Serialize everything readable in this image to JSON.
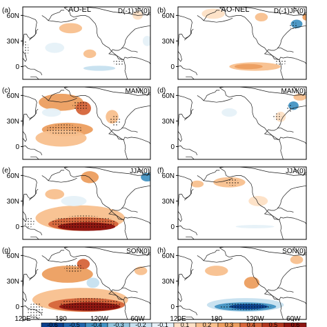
{
  "colors": {
    "-0.6": "#0a3f8c",
    "-0.5": "#2166ac",
    "-0.4": "#4393c3",
    "-0.3": "#92c5de",
    "-0.2": "#c6e0ef",
    "-0.1": "#e6f1f8",
    "0.1": "#fde0c5",
    "0.2": "#f8c08e",
    "0.3": "#ec9e5f",
    "0.4": "#d6653a",
    "0.5": "#b2361f",
    "0.6": "#8c1410",
    "land": "#ffffff",
    "coast": "#1a1a1a",
    "frame": "#000000"
  },
  "chart_data": [
    {
      "type": "heatmap",
      "panel": "(a)",
      "column_title": "AO-EL",
      "season": "D(-1)JF(0)",
      "y_tick_labels": [
        "60N",
        "30N",
        "0"
      ],
      "x_tick_labels": [],
      "features": [
        {
          "sign": "pos",
          "level": 0.2,
          "lon": 195,
          "lat": 45,
          "rx": 18,
          "ry": 6
        },
        {
          "sign": "pos",
          "level": 0.2,
          "lon": 225,
          "lat": 15,
          "rx": 10,
          "ry": 5
        },
        {
          "sign": "neg",
          "level": -0.2,
          "lon": 240,
          "lat": -2,
          "rx": 25,
          "ry": 3
        },
        {
          "sign": "neg",
          "level": -0.1,
          "lon": 170,
          "lat": 22,
          "rx": 15,
          "ry": 6
        },
        {
          "sign": "pos",
          "level": 0.1,
          "lon": 300,
          "lat": 60,
          "rx": 8,
          "ry": 5
        },
        {
          "sign": "neg",
          "level": -0.1,
          "lon": 315,
          "lat": 30,
          "rx": 7,
          "ry": 6
        }
      ],
      "stipple": [
        {
          "lon": 270,
          "lat": 5,
          "rx": 8,
          "ry": 4
        },
        {
          "lon": 125,
          "lat": 20,
          "rx": 4,
          "ry": 10
        }
      ]
    },
    {
      "type": "heatmap",
      "panel": "(b)",
      "column_title": "AO-NEL",
      "season": "D(-1)JF(0)",
      "y_tick_labels": [
        "60N",
        "30N",
        "0"
      ],
      "x_tick_labels": [],
      "features": [
        {
          "sign": "pos",
          "level": 0.2,
          "lon": 240,
          "lat": 0,
          "rx": 40,
          "ry": 5
        },
        {
          "sign": "pos",
          "level": 0.3,
          "lon": 230,
          "lat": 0,
          "rx": 22,
          "ry": 3
        },
        {
          "sign": "pos",
          "level": 0.1,
          "lon": 175,
          "lat": 62,
          "rx": 18,
          "ry": 6
        },
        {
          "sign": "pos",
          "level": 0.2,
          "lon": 250,
          "lat": 58,
          "rx": 10,
          "ry": 5
        },
        {
          "sign": "neg",
          "level": -0.4,
          "lon": 305,
          "lat": 50,
          "rx": 9,
          "ry": 5
        },
        {
          "sign": "pos",
          "level": 0.3,
          "lon": 320,
          "lat": 58,
          "rx": 6,
          "ry": 4
        }
      ],
      "stipple": [
        {
          "lon": 300,
          "lat": 48,
          "rx": 7,
          "ry": 4
        },
        {
          "lon": 280,
          "lat": 5,
          "rx": 10,
          "ry": 3
        }
      ]
    },
    {
      "type": "heatmap",
      "panel": "(c)",
      "season": "MAM(0)",
      "y_tick_labels": [
        "60N",
        "30N",
        "0"
      ],
      "x_tick_labels": [],
      "features": [
        {
          "sign": "pos",
          "level": 0.3,
          "lon": 180,
          "lat": 52,
          "rx": 35,
          "ry": 10
        },
        {
          "sign": "pos",
          "level": 0.4,
          "lon": 215,
          "lat": 45,
          "rx": 12,
          "ry": 8
        },
        {
          "sign": "pos",
          "level": 0.3,
          "lon": 190,
          "lat": 20,
          "rx": 40,
          "ry": 8
        },
        {
          "sign": "pos",
          "level": 0.2,
          "lon": 180,
          "lat": 10,
          "rx": 40,
          "ry": 10
        },
        {
          "sign": "neg",
          "level": -0.1,
          "lon": 165,
          "lat": 40,
          "rx": 15,
          "ry": 5
        },
        {
          "sign": "pos",
          "level": 0.2,
          "lon": 260,
          "lat": 35,
          "rx": 10,
          "ry": 8
        }
      ],
      "stipple": [
        {
          "lon": 210,
          "lat": 48,
          "rx": 12,
          "ry": 6
        },
        {
          "lon": 185,
          "lat": 20,
          "rx": 28,
          "ry": 6
        },
        {
          "lon": 265,
          "lat": 30,
          "rx": 8,
          "ry": 6
        }
      ]
    },
    {
      "type": "heatmap",
      "panel": "(d)",
      "season": "MAM(0)",
      "y_tick_labels": [
        "60N",
        "30N",
        "0"
      ],
      "x_tick_labels": [],
      "features": [
        {
          "sign": "neg",
          "level": -0.4,
          "lon": 300,
          "lat": 48,
          "rx": 8,
          "ry": 5
        },
        {
          "sign": "pos",
          "level": 0.2,
          "lon": 310,
          "lat": 58,
          "rx": 10,
          "ry": 4
        },
        {
          "sign": "pos",
          "level": 0.1,
          "lon": 280,
          "lat": 35,
          "rx": 8,
          "ry": 6
        },
        {
          "sign": "neg",
          "level": -0.1,
          "lon": 200,
          "lat": 40,
          "rx": 12,
          "ry": 5
        }
      ],
      "stipple": [
        {
          "lon": 295,
          "lat": 45,
          "rx": 6,
          "ry": 4
        },
        {
          "lon": 275,
          "lat": 35,
          "rx": 7,
          "ry": 4
        }
      ]
    },
    {
      "type": "heatmap",
      "panel": "(e)",
      "season": "JJA(0)",
      "y_tick_labels": [
        "60N",
        "30N",
        "0"
      ],
      "x_tick_labels": [],
      "features": [
        {
          "sign": "pos",
          "level": 0.2,
          "lon": 210,
          "lat": 10,
          "rx": 70,
          "ry": 15
        },
        {
          "sign": "pos",
          "level": 0.4,
          "lon": 215,
          "lat": 3,
          "rx": 55,
          "ry": 8
        },
        {
          "sign": "pos",
          "level": 0.6,
          "lon": 220,
          "lat": 0,
          "rx": 45,
          "ry": 5
        },
        {
          "sign": "pos",
          "level": 0.3,
          "lon": 225,
          "lat": 58,
          "rx": 14,
          "ry": 7
        },
        {
          "sign": "pos",
          "level": 0.2,
          "lon": 170,
          "lat": 38,
          "rx": 15,
          "ry": 6
        },
        {
          "sign": "neg",
          "level": -0.4,
          "lon": 315,
          "lat": 58,
          "rx": 10,
          "ry": 5
        },
        {
          "sign": "neg",
          "level": -0.1,
          "lon": 200,
          "lat": 30,
          "rx": 20,
          "ry": 6
        }
      ],
      "stipple": [
        {
          "lon": 215,
          "lat": 5,
          "rx": 50,
          "ry": 8
        },
        {
          "lon": 130,
          "lat": 5,
          "rx": 8,
          "ry": 6
        }
      ]
    },
    {
      "type": "heatmap",
      "panel": "(f)",
      "season": "JJA(0)",
      "y_tick_labels": [
        "60N",
        "30N",
        "0"
      ],
      "x_tick_labels": [],
      "features": [
        {
          "sign": "pos",
          "level": 0.2,
          "lon": 200,
          "lat": 52,
          "rx": 25,
          "ry": 6
        },
        {
          "sign": "pos",
          "level": 0.2,
          "lon": 150,
          "lat": 50,
          "rx": 10,
          "ry": 4
        },
        {
          "sign": "pos",
          "level": 0.1,
          "lon": 245,
          "lat": 30,
          "rx": 15,
          "ry": 6
        },
        {
          "sign": "neg",
          "level": -0.1,
          "lon": 240,
          "lat": 0,
          "rx": 30,
          "ry": 2
        }
      ],
      "stipple": [
        {
          "lon": 205,
          "lat": 52,
          "rx": 10,
          "ry": 4
        }
      ]
    },
    {
      "type": "heatmap",
      "panel": "(g)",
      "season": "SON(0)",
      "y_tick_labels": [
        "60N",
        "30N",
        "0"
      ],
      "x_tick_labels": [
        "120E",
        "180",
        "120W",
        "60W"
      ],
      "features": [
        {
          "sign": "pos",
          "level": 0.2,
          "lon": 210,
          "lat": 8,
          "rx": 75,
          "ry": 14
        },
        {
          "sign": "pos",
          "level": 0.4,
          "lon": 220,
          "lat": 2,
          "rx": 60,
          "ry": 8
        },
        {
          "sign": "pos",
          "level": 0.6,
          "lon": 225,
          "lat": 0,
          "rx": 48,
          "ry": 5
        },
        {
          "sign": "pos",
          "level": 0.3,
          "lon": 190,
          "lat": 38,
          "rx": 40,
          "ry": 10
        },
        {
          "sign": "pos",
          "level": 0.4,
          "lon": 215,
          "lat": 50,
          "rx": 10,
          "ry": 6
        },
        {
          "sign": "neg",
          "level": -0.2,
          "lon": 230,
          "lat": 28,
          "rx": 10,
          "ry": 6
        },
        {
          "sign": "pos",
          "level": 0.2,
          "lon": 305,
          "lat": 42,
          "rx": 10,
          "ry": 5
        }
      ],
      "stipple": [
        {
          "lon": 225,
          "lat": 3,
          "rx": 48,
          "ry": 7
        },
        {
          "lon": 140,
          "lat": -5,
          "rx": 12,
          "ry": 10
        },
        {
          "lon": 200,
          "lat": 45,
          "rx": 15,
          "ry": 5
        }
      ]
    },
    {
      "type": "heatmap",
      "panel": "(h)",
      "season": "SON(0)",
      "y_tick_labels": [
        "60N",
        "30N",
        "0"
      ],
      "x_tick_labels": [
        "120E",
        "180",
        "120W",
        "60W"
      ],
      "features": [
        {
          "sign": "neg",
          "level": -0.2,
          "lon": 225,
          "lat": 2,
          "rx": 60,
          "ry": 8
        },
        {
          "sign": "neg",
          "level": -0.4,
          "lon": 225,
          "lat": 0,
          "rx": 48,
          "ry": 5
        },
        {
          "sign": "neg",
          "level": -0.6,
          "lon": 230,
          "lat": 0,
          "rx": 30,
          "ry": 3
        },
        {
          "sign": "pos",
          "level": 0.3,
          "lon": 235,
          "lat": 28,
          "rx": 12,
          "ry": 7
        },
        {
          "sign": "pos",
          "level": 0.2,
          "lon": 180,
          "lat": 42,
          "rx": 18,
          "ry": 6
        },
        {
          "sign": "pos",
          "level": 0.2,
          "lon": 305,
          "lat": 55,
          "rx": 10,
          "ry": 5
        }
      ],
      "stipple": [
        {
          "lon": 225,
          "lat": 0,
          "rx": 40,
          "ry": 4
        }
      ]
    }
  ],
  "colorbar": {
    "levels": [
      -0.6,
      -0.5,
      -0.4,
      -0.3,
      -0.2,
      -0.1,
      0.1,
      0.2,
      0.3,
      0.4,
      0.5,
      0.6
    ],
    "labels": [
      "-0.6",
      "-0.5",
      "-0.4",
      "-0.3",
      "-0.2",
      "-0.1",
      "0.1",
      "0.2",
      "0.3",
      "0.4",
      "0.5",
      "0.6"
    ]
  }
}
